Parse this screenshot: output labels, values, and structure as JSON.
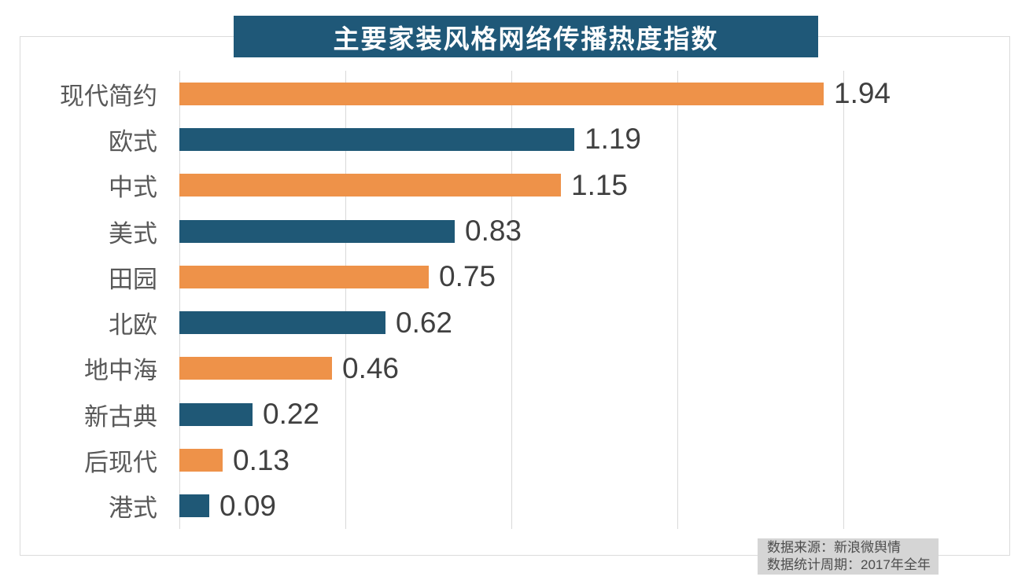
{
  "title": "主要家装风格网络传播热度指数",
  "source_note": {
    "line1": "数据来源：新浪微舆情",
    "line2": "数据统计周期：2017年全年"
  },
  "colors": {
    "title_bg": "#1F5878",
    "bar_orange": "#EE9249",
    "bar_blue": "#1F5876",
    "gridline": "#D9D9D9",
    "category_label_text": "#595959",
    "value_label_text": "#404040",
    "source_box_bg": "#D5D5D5",
    "source_box_text": "#4D4D4D",
    "frame_border": "#DBDBDB"
  },
  "chart_data": {
    "type": "bar",
    "orientation": "horizontal",
    "title": "主要家装风格网络传播热度指数",
    "categories": [
      "现代简约",
      "欧式",
      "中式",
      "美式",
      "田园",
      "北欧",
      "地中海",
      "新古典",
      "后现代",
      "港式"
    ],
    "values": [
      1.94,
      1.19,
      1.15,
      0.83,
      0.75,
      0.62,
      0.46,
      0.22,
      0.13,
      0.09
    ],
    "value_labels": [
      "1.94",
      "1.19",
      "1.15",
      "0.83",
      "0.75",
      "0.62",
      "0.46",
      "0.22",
      "0.13",
      "0.09"
    ],
    "xlim": [
      0,
      2.5
    ],
    "gridline_values": [
      0,
      0.5,
      1.0,
      1.5,
      2.0,
      2.5
    ],
    "grid": true,
    "legend": false,
    "data_labels": true,
    "bar_color_pattern": [
      "#EE9249",
      "#1F5876"
    ],
    "source_lines": [
      "数据来源：新浪微舆情",
      "数据统计周期：2017年全年"
    ]
  }
}
